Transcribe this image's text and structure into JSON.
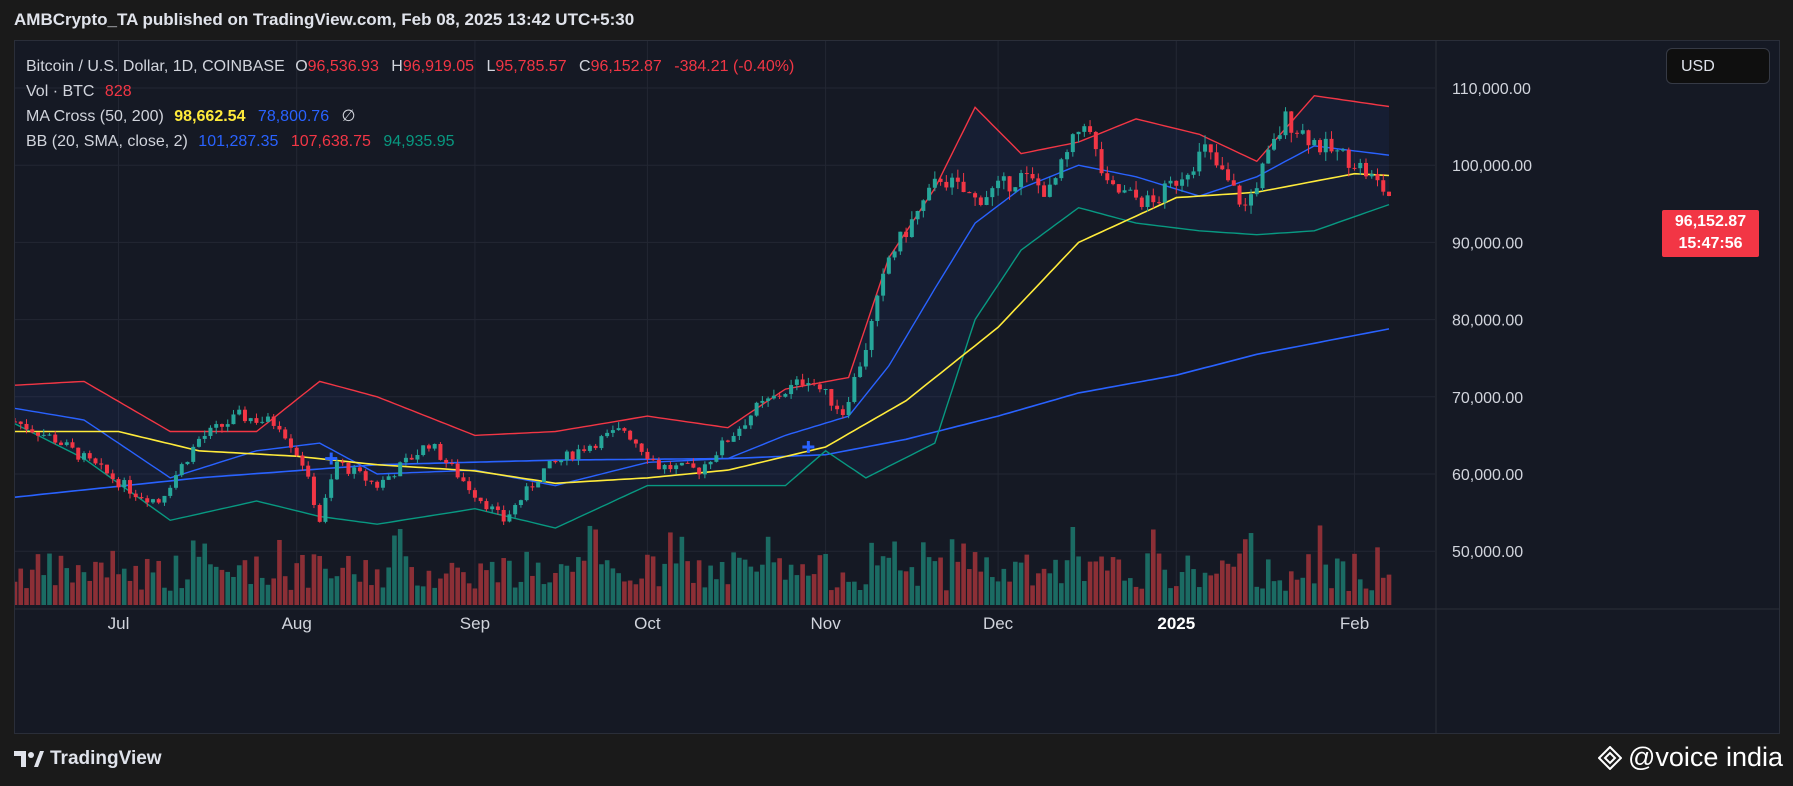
{
  "header": {
    "published": "AMBCrypto_TA published on TradingView.com, Feb 08, 2025 13:42 UTC+5:30"
  },
  "legend": {
    "symbol": "Bitcoin / U.S. Dollar, 1D, COINBASE",
    "ohlc": [
      {
        "key": "O",
        "value": "96,536.93"
      },
      {
        "key": "H",
        "value": "96,919.05"
      },
      {
        "key": "L",
        "value": "95,785.57"
      },
      {
        "key": "C",
        "value": "96,152.87"
      }
    ],
    "change": "-384.21 (-0.40%)",
    "volume": {
      "label": "Vol · BTC",
      "value": "828"
    },
    "ma_cross": {
      "label": "MA Cross (50, 200)",
      "ma50": "98,662.54",
      "ma200": "78,800.76",
      "extra": "∅"
    },
    "bb": {
      "label": "BB (20, SMA, close, 2)",
      "basis": "101,287.35",
      "upper": "107,638.75",
      "lower": "94,935.95"
    }
  },
  "currency_button": "USD",
  "price_tag": {
    "price": "96,152.87",
    "countdown": "15:47:56"
  },
  "footer": {
    "logo_text": "TradingView",
    "watermark": "@voice india"
  },
  "colors": {
    "up": "#26a69a",
    "down": "#f23645",
    "ma50": "#ffeb3b",
    "ma200": "#2962ff",
    "bb_upper": "#f23645",
    "bb_basis": "#2962ff",
    "bb_lower": "#089981",
    "vol_up": "#1b6b63",
    "vol_down": "#8c2f36"
  },
  "chart_data": {
    "type": "line",
    "title": "Bitcoin / U.S. Dollar, 1D, COINBASE",
    "y_ticks": [
      "110,000.00",
      "100,000.00",
      "90,000.00",
      "80,000.00",
      "70,000.00",
      "60,000.00",
      "50,000.00"
    ],
    "y_tick_values": [
      110000,
      100000,
      90000,
      80000,
      70000,
      60000,
      50000
    ],
    "x_ticks": [
      {
        "label": "Jul",
        "date": "2024-07-01",
        "bold": false
      },
      {
        "label": "Aug",
        "date": "2024-08-01",
        "bold": false
      },
      {
        "label": "Sep",
        "date": "2024-09-01",
        "bold": false
      },
      {
        "label": "Oct",
        "date": "2024-10-01",
        "bold": false
      },
      {
        "label": "Nov",
        "date": "2024-11-01",
        "bold": false
      },
      {
        "label": "Dec",
        "date": "2024-12-01",
        "bold": false
      },
      {
        "label": "2025",
        "date": "2025-01-01",
        "bold": true
      },
      {
        "label": "Feb",
        "date": "2025-02-01",
        "bold": false
      }
    ],
    "ylim": [
      43000,
      114000
    ],
    "x_start": "2024-06-13",
    "x_end": "2025-02-15",
    "series": [
      {
        "name": "MA 50",
        "x": [
          "2024-06-13",
          "2024-07-01",
          "2024-07-15",
          "2024-08-01",
          "2024-08-15",
          "2024-09-01",
          "2024-09-15",
          "2024-10-01",
          "2024-10-15",
          "2024-11-01",
          "2024-11-15",
          "2024-12-01",
          "2024-12-15",
          "2025-01-01",
          "2025-01-15",
          "2025-02-01",
          "2025-02-07"
        ],
        "y": [
          65500,
          65500,
          63000,
          62300,
          61200,
          60400,
          58800,
          59500,
          60500,
          63500,
          69500,
          79000,
          90000,
          95800,
          96500,
          98900,
          98660
        ]
      },
      {
        "name": "MA 200",
        "x": [
          "2024-06-13",
          "2024-07-15",
          "2024-08-15",
          "2024-09-15",
          "2024-10-15",
          "2024-11-01",
          "2024-11-15",
          "2024-12-01",
          "2024-12-15",
          "2025-01-01",
          "2025-01-15",
          "2025-02-07"
        ],
        "y": [
          57000,
          59500,
          61200,
          61800,
          62000,
          62500,
          64500,
          67500,
          70500,
          72800,
          75500,
          78800
        ]
      },
      {
        "name": "BB Upper",
        "x": [
          "2024-06-13",
          "2024-06-25",
          "2024-07-10",
          "2024-07-25",
          "2024-08-05",
          "2024-08-15",
          "2024-09-01",
          "2024-09-15",
          "2024-10-01",
          "2024-10-15",
          "2024-10-25",
          "2024-11-05",
          "2024-11-12",
          "2024-11-20",
          "2024-11-27",
          "2024-12-05",
          "2024-12-15",
          "2024-12-25",
          "2025-01-05",
          "2025-01-15",
          "2025-01-25",
          "2025-02-07"
        ],
        "y": [
          71500,
          72000,
          65500,
          65500,
          72000,
          70000,
          65000,
          65500,
          67500,
          66000,
          71000,
          72500,
          88000,
          97000,
          107500,
          101500,
          103000,
          106000,
          104000,
          100500,
          109000,
          107600
        ]
      },
      {
        "name": "BB Basis",
        "x": [
          "2024-06-13",
          "2024-06-25",
          "2024-07-10",
          "2024-07-25",
          "2024-08-05",
          "2024-08-15",
          "2024-09-01",
          "2024-09-15",
          "2024-10-01",
          "2024-10-15",
          "2024-10-25",
          "2024-11-05",
          "2024-11-12",
          "2024-11-20",
          "2024-11-27",
          "2024-12-05",
          "2024-12-15",
          "2024-12-25",
          "2025-01-05",
          "2025-01-15",
          "2025-01-25",
          "2025-02-07"
        ],
        "y": [
          68500,
          67000,
          59500,
          63000,
          64000,
          60000,
          60500,
          58500,
          61500,
          62000,
          65000,
          67500,
          74000,
          84000,
          92500,
          97000,
          100000,
          98500,
          96000,
          98500,
          102500,
          101300
        ]
      },
      {
        "name": "BB Lower",
        "x": [
          "2024-06-13",
          "2024-06-25",
          "2024-07-10",
          "2024-07-25",
          "2024-08-05",
          "2024-08-15",
          "2024-09-01",
          "2024-09-15",
          "2024-10-01",
          "2024-10-15",
          "2024-10-25",
          "2024-11-01",
          "2024-11-08",
          "2024-11-20",
          "2024-11-27",
          "2024-12-05",
          "2024-12-15",
          "2024-12-25",
          "2025-01-05",
          "2025-01-15",
          "2025-01-25",
          "2025-02-07"
        ],
        "y": [
          66500,
          62000,
          54000,
          56500,
          54500,
          53500,
          55500,
          53000,
          58500,
          58500,
          58500,
          63000,
          59500,
          64000,
          80000,
          89000,
          94500,
          92500,
          91500,
          91000,
          91500,
          94900
        ]
      },
      {
        "name": "Close",
        "x": [
          "2024-06-13",
          "2024-06-20",
          "2024-06-27",
          "2024-07-04",
          "2024-07-08",
          "2024-07-15",
          "2024-07-22",
          "2024-07-29",
          "2024-08-02",
          "2024-08-05",
          "2024-08-08",
          "2024-08-15",
          "2024-08-24",
          "2024-09-01",
          "2024-09-06",
          "2024-09-13",
          "2024-09-20",
          "2024-09-27",
          "2024-10-03",
          "2024-10-10",
          "2024-10-20",
          "2024-10-29",
          "2024-11-04",
          "2024-11-08",
          "2024-11-12",
          "2024-11-21",
          "2024-11-27",
          "2024-12-05",
          "2024-12-10",
          "2024-12-16",
          "2024-12-20",
          "2024-12-28",
          "2025-01-06",
          "2025-01-13",
          "2025-01-20",
          "2025-01-26",
          "2025-02-01",
          "2025-02-07"
        ],
        "y": [
          66800,
          64500,
          61000,
          57500,
          56500,
          64500,
          67500,
          66500,
          61500,
          54000,
          61500,
          58500,
          64000,
          57500,
          54000,
          60500,
          63500,
          65800,
          61000,
          60500,
          68500,
          72500,
          68000,
          76500,
          88000,
          98500,
          95500,
          98500,
          96500,
          106000,
          97000,
          95000,
          102000,
          94500,
          106000,
          102500,
          100500,
          96150
        ]
      }
    ]
  }
}
